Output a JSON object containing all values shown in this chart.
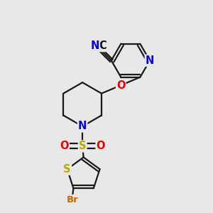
{
  "bg_color": "#e8e8e8",
  "bond_color": "#1a1a1a",
  "bond_width": 1.6,
  "atom_colors": {
    "N": "#0000ee",
    "O": "#ee0000",
    "S": "#bbaa00",
    "Br": "#cc6600",
    "C": "#111111"
  },
  "font_size": 10.5,
  "font_size_br": 9.5
}
